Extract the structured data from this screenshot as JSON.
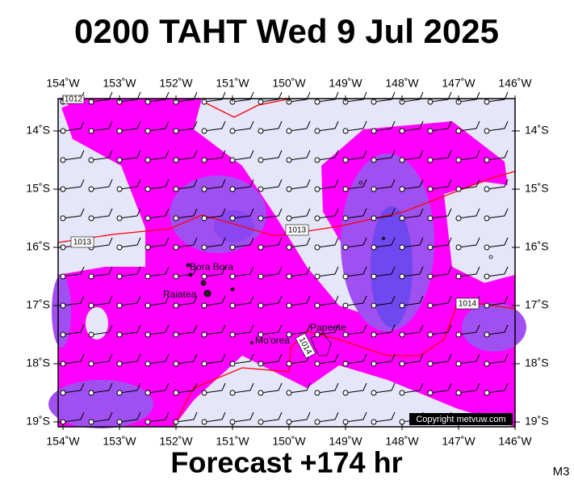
{
  "header": {
    "title": "0200 TAHT Wed 9 Jul 2025"
  },
  "footer": {
    "forecast": "Forecast +174 hr",
    "model": "M3"
  },
  "map": {
    "lon_ticks": [
      {
        "value": -154,
        "label": "154˚W"
      },
      {
        "value": -153,
        "label": "153˚W"
      },
      {
        "value": -152,
        "label": "152˚W"
      },
      {
        "value": -151,
        "label": "151˚W"
      },
      {
        "value": -150,
        "label": "150˚W"
      },
      {
        "value": -149,
        "label": "149˚W"
      },
      {
        "value": -148,
        "label": "148˚W"
      },
      {
        "value": -147,
        "label": "147˚W"
      },
      {
        "value": -146,
        "label": "146˚W"
      }
    ],
    "lat_ticks": [
      {
        "value": -14,
        "label": "14˚S"
      },
      {
        "value": -15,
        "label": "15˚S"
      },
      {
        "value": -16,
        "label": "16˚S"
      },
      {
        "value": -17,
        "label": "17˚S"
      },
      {
        "value": -18,
        "label": "18˚S"
      },
      {
        "value": -19,
        "label": "19˚S"
      }
    ],
    "places": [
      "Bora Bora",
      "Raiatea",
      "Mo'orea",
      "Papeete"
    ],
    "isobar_labels": [
      "1012",
      "1013",
      "1013",
      "1014",
      "1014"
    ],
    "copyright": "Copyright metvuw.com"
  }
}
